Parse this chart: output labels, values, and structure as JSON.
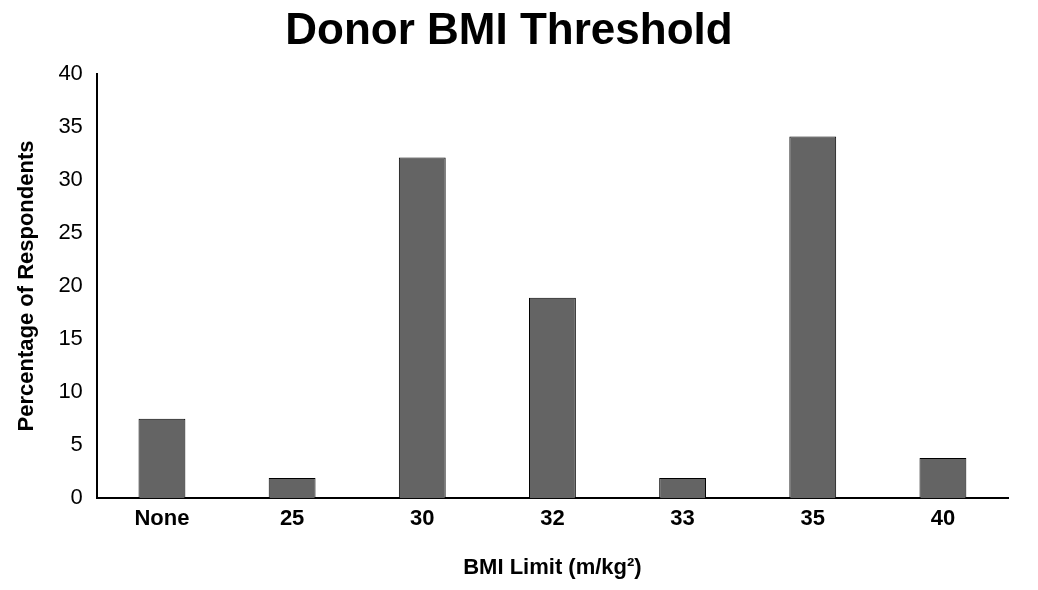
{
  "chart_data": {
    "type": "bar",
    "title": "Donor BMI Threshold",
    "xlabel": "BMI Limit (m/kg²)",
    "ylabel": "Percentage of Respondents",
    "categories": [
      "None",
      "25",
      "30",
      "32",
      "33",
      "35",
      "40"
    ],
    "values": [
      7.5,
      1.9,
      32.1,
      18.9,
      1.9,
      34.1,
      3.8
    ],
    "color": "#646464",
    "ylim": [
      0,
      40
    ],
    "yticks": [
      0,
      5,
      10,
      15,
      20,
      25,
      30,
      35,
      40
    ],
    "grid": false,
    "legend": false
  }
}
